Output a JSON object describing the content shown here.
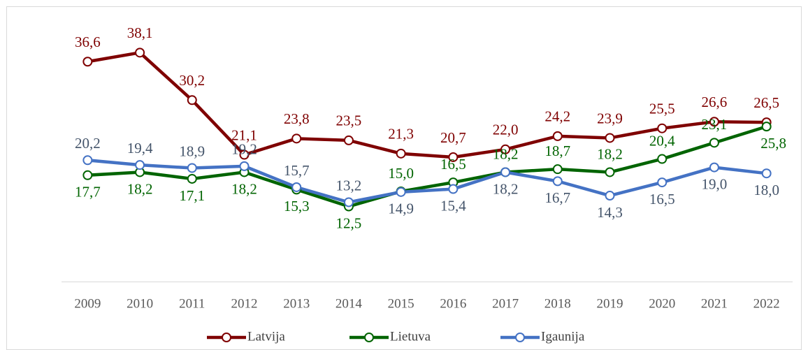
{
  "chart_data": {
    "type": "line",
    "categories": [
      "2009",
      "2010",
      "2011",
      "2012",
      "2013",
      "2014",
      "2015",
      "2016",
      "2017",
      "2018",
      "2019",
      "2020",
      "2021",
      "2022"
    ],
    "series": [
      {
        "name": "Latvija",
        "color": "#7f0000",
        "values": [
          36.6,
          38.1,
          30.2,
          21.1,
          23.8,
          23.5,
          21.3,
          20.7,
          22.0,
          24.2,
          23.9,
          25.5,
          26.6,
          26.5
        ],
        "value_labels": [
          "36,6",
          "38,1",
          "30,2",
          "21,1",
          "23,8",
          "23,5",
          "21,3",
          "20,7",
          "22,0",
          "24,2",
          "23,9",
          "25,5",
          "26,6",
          "26,5"
        ]
      },
      {
        "name": "Lietuva",
        "color": "#006400",
        "values": [
          17.7,
          18.2,
          17.1,
          18.2,
          15.3,
          12.5,
          15.0,
          16.5,
          18.2,
          18.7,
          18.2,
          20.4,
          23.1,
          25.8
        ],
        "value_labels": [
          "17,7",
          "18,2",
          "17,1",
          "18,2",
          "15,3",
          "12,5",
          "15,0",
          "16,5",
          "18,2",
          "18,7",
          "18,2",
          "20,4",
          "23,1",
          "25,8"
        ]
      },
      {
        "name": "Igaunija",
        "color": "#4472c4",
        "values": [
          20.2,
          19.4,
          18.9,
          19.2,
          15.7,
          13.2,
          14.9,
          15.4,
          18.2,
          16.7,
          14.3,
          16.5,
          19.0,
          18.0
        ],
        "value_labels": [
          "20,2",
          "19,4",
          "18,9",
          "19,2",
          "15,7",
          "13,2",
          "14,9",
          "15,4",
          "18,2",
          "16,7",
          "14,3",
          "16,5",
          "19,0",
          "18,0"
        ]
      }
    ],
    "ylim": [
      0,
      45
    ],
    "legend": "bottom"
  }
}
